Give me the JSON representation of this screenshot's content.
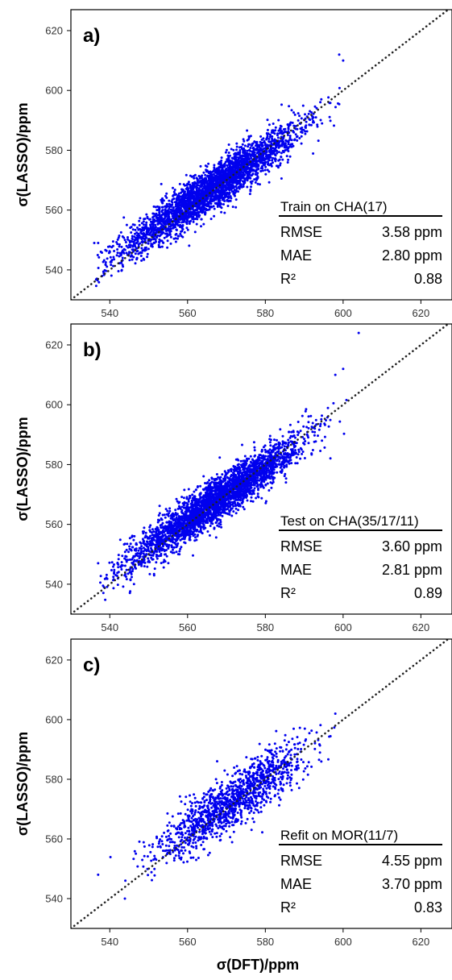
{
  "colors": {
    "points": "#0000ee",
    "diagonal": "#222222",
    "axis": "#000000"
  },
  "xlabel": "σ(DFT)/ppm",
  "chart_data": [
    {
      "type": "scatter",
      "panel_label": "a)",
      "ylabel": "σ(LASSO)/ppm",
      "xlim": [
        530,
        628
      ],
      "ylim": [
        530,
        627
      ],
      "xticks": [
        "540",
        "560",
        "580",
        "600",
        "620"
      ],
      "yticks": [
        "540",
        "560",
        "580",
        "600",
        "620"
      ],
      "diagonal": [
        [
          530,
          530
        ],
        [
          628,
          628
        ]
      ],
      "cloud": {
        "n": 3200,
        "x_mean": 566,
        "x_sd": 11,
        "slope": 0.88,
        "intercept": 68.8,
        "noise_sd": 3.6,
        "xmin": 536,
        "xmax": 602
      },
      "outliers": [
        [
          536,
          549
        ],
        [
          537,
          549
        ],
        [
          540,
          546
        ],
        [
          599,
          612
        ],
        [
          600,
          610
        ]
      ],
      "stats": {
        "title": "Train on CHA(17)",
        "rows": [
          {
            "label": "RMSE",
            "value": "3.58 ppm"
          },
          {
            "label": "MAE",
            "value": "2.80 ppm"
          },
          {
            "label": "R²",
            "value": "0.88"
          }
        ]
      }
    },
    {
      "type": "scatter",
      "panel_label": "b)",
      "ylabel": "σ(LASSO)/ppm",
      "xlim": [
        530,
        628
      ],
      "ylim": [
        530,
        627
      ],
      "xticks": [
        "540",
        "560",
        "580",
        "600",
        "620"
      ],
      "yticks": [
        "540",
        "560",
        "580",
        "600",
        "620"
      ],
      "diagonal": [
        [
          530,
          530
        ],
        [
          628,
          628
        ]
      ],
      "cloud": {
        "n": 3200,
        "x_mean": 567,
        "x_sd": 11,
        "slope": 0.89,
        "intercept": 63.0,
        "noise_sd": 3.6,
        "xmin": 536,
        "xmax": 601
      },
      "outliers": [
        [
          537,
          547
        ],
        [
          604,
          624
        ],
        [
          598,
          610
        ],
        [
          600,
          612
        ]
      ],
      "stats": {
        "title": "Test on CHA(35/17/11)",
        "rows": [
          {
            "label": "RMSE",
            "value": "3.60 ppm"
          },
          {
            "label": "MAE",
            "value": "2.81 ppm"
          },
          {
            "label": "R²",
            "value": "0.89"
          }
        ]
      }
    },
    {
      "type": "scatter",
      "panel_label": "c)",
      "ylabel": "σ(LASSO)/ppm",
      "xlim": [
        530,
        628
      ],
      "ylim": [
        530,
        627
      ],
      "xticks": [
        "540",
        "560",
        "580",
        "600",
        "620"
      ],
      "yticks": [
        "540",
        "560",
        "580",
        "600",
        "620"
      ],
      "diagonal": [
        [
          530,
          530
        ],
        [
          628,
          628
        ]
      ],
      "cloud": {
        "n": 1300,
        "x_mean": 572,
        "x_sd": 10,
        "slope": 0.85,
        "intercept": 86.8,
        "noise_sd": 4.5,
        "xmin": 538,
        "xmax": 598
      },
      "outliers": [
        [
          537,
          548
        ],
        [
          598,
          602
        ],
        [
          544,
          546
        ]
      ],
      "stats": {
        "title": "Refit on MOR(11/7)",
        "rows": [
          {
            "label": "RMSE",
            "value": "4.55 ppm"
          },
          {
            "label": "MAE",
            "value": "3.70 ppm"
          },
          {
            "label": "R²",
            "value": "0.83"
          }
        ]
      }
    }
  ]
}
